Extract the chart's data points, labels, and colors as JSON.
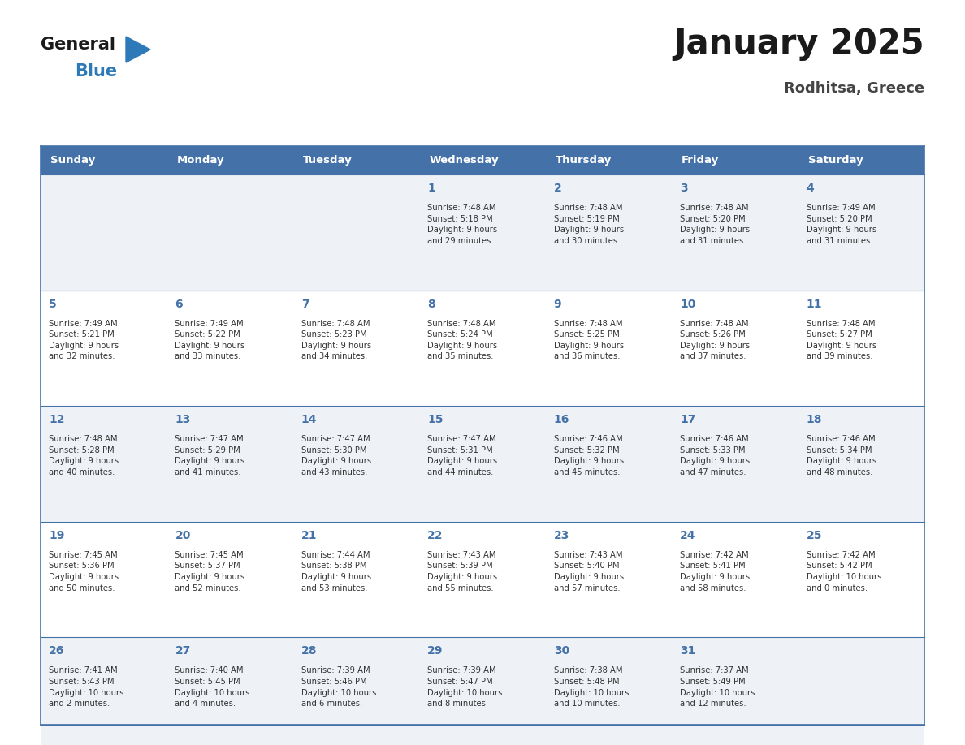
{
  "title": "January 2025",
  "subtitle": "Rodhitsa, Greece",
  "header_color": "#4472a8",
  "header_text_color": "#ffffff",
  "cell_bg_row_a": "#eef2f7",
  "cell_bg_row_b": "#ffffff",
  "border_color": "#4472a8",
  "separator_color": "#4472a8",
  "day_headers": [
    "Sunday",
    "Monday",
    "Tuesday",
    "Wednesday",
    "Thursday",
    "Friday",
    "Saturday"
  ],
  "title_color": "#1a1a1a",
  "subtitle_color": "#444444",
  "day_num_color": "#4472a8",
  "cell_text_color": "#333333",
  "logo_general_color": "#1a1a1a",
  "logo_blue_color": "#2e7ab8",
  "logo_triangle_color": "#2e7ab8",
  "weeks": [
    [
      {
        "day": "",
        "info": ""
      },
      {
        "day": "",
        "info": ""
      },
      {
        "day": "",
        "info": ""
      },
      {
        "day": "1",
        "info": "Sunrise: 7:48 AM\nSunset: 5:18 PM\nDaylight: 9 hours\nand 29 minutes."
      },
      {
        "day": "2",
        "info": "Sunrise: 7:48 AM\nSunset: 5:19 PM\nDaylight: 9 hours\nand 30 minutes."
      },
      {
        "day": "3",
        "info": "Sunrise: 7:48 AM\nSunset: 5:20 PM\nDaylight: 9 hours\nand 31 minutes."
      },
      {
        "day": "4",
        "info": "Sunrise: 7:49 AM\nSunset: 5:20 PM\nDaylight: 9 hours\nand 31 minutes."
      }
    ],
    [
      {
        "day": "5",
        "info": "Sunrise: 7:49 AM\nSunset: 5:21 PM\nDaylight: 9 hours\nand 32 minutes."
      },
      {
        "day": "6",
        "info": "Sunrise: 7:49 AM\nSunset: 5:22 PM\nDaylight: 9 hours\nand 33 minutes."
      },
      {
        "day": "7",
        "info": "Sunrise: 7:48 AM\nSunset: 5:23 PM\nDaylight: 9 hours\nand 34 minutes."
      },
      {
        "day": "8",
        "info": "Sunrise: 7:48 AM\nSunset: 5:24 PM\nDaylight: 9 hours\nand 35 minutes."
      },
      {
        "day": "9",
        "info": "Sunrise: 7:48 AM\nSunset: 5:25 PM\nDaylight: 9 hours\nand 36 minutes."
      },
      {
        "day": "10",
        "info": "Sunrise: 7:48 AM\nSunset: 5:26 PM\nDaylight: 9 hours\nand 37 minutes."
      },
      {
        "day": "11",
        "info": "Sunrise: 7:48 AM\nSunset: 5:27 PM\nDaylight: 9 hours\nand 39 minutes."
      }
    ],
    [
      {
        "day": "12",
        "info": "Sunrise: 7:48 AM\nSunset: 5:28 PM\nDaylight: 9 hours\nand 40 minutes."
      },
      {
        "day": "13",
        "info": "Sunrise: 7:47 AM\nSunset: 5:29 PM\nDaylight: 9 hours\nand 41 minutes."
      },
      {
        "day": "14",
        "info": "Sunrise: 7:47 AM\nSunset: 5:30 PM\nDaylight: 9 hours\nand 43 minutes."
      },
      {
        "day": "15",
        "info": "Sunrise: 7:47 AM\nSunset: 5:31 PM\nDaylight: 9 hours\nand 44 minutes."
      },
      {
        "day": "16",
        "info": "Sunrise: 7:46 AM\nSunset: 5:32 PM\nDaylight: 9 hours\nand 45 minutes."
      },
      {
        "day": "17",
        "info": "Sunrise: 7:46 AM\nSunset: 5:33 PM\nDaylight: 9 hours\nand 47 minutes."
      },
      {
        "day": "18",
        "info": "Sunrise: 7:46 AM\nSunset: 5:34 PM\nDaylight: 9 hours\nand 48 minutes."
      }
    ],
    [
      {
        "day": "19",
        "info": "Sunrise: 7:45 AM\nSunset: 5:36 PM\nDaylight: 9 hours\nand 50 minutes."
      },
      {
        "day": "20",
        "info": "Sunrise: 7:45 AM\nSunset: 5:37 PM\nDaylight: 9 hours\nand 52 minutes."
      },
      {
        "day": "21",
        "info": "Sunrise: 7:44 AM\nSunset: 5:38 PM\nDaylight: 9 hours\nand 53 minutes."
      },
      {
        "day": "22",
        "info": "Sunrise: 7:43 AM\nSunset: 5:39 PM\nDaylight: 9 hours\nand 55 minutes."
      },
      {
        "day": "23",
        "info": "Sunrise: 7:43 AM\nSunset: 5:40 PM\nDaylight: 9 hours\nand 57 minutes."
      },
      {
        "day": "24",
        "info": "Sunrise: 7:42 AM\nSunset: 5:41 PM\nDaylight: 9 hours\nand 58 minutes."
      },
      {
        "day": "25",
        "info": "Sunrise: 7:42 AM\nSunset: 5:42 PM\nDaylight: 10 hours\nand 0 minutes."
      }
    ],
    [
      {
        "day": "26",
        "info": "Sunrise: 7:41 AM\nSunset: 5:43 PM\nDaylight: 10 hours\nand 2 minutes."
      },
      {
        "day": "27",
        "info": "Sunrise: 7:40 AM\nSunset: 5:45 PM\nDaylight: 10 hours\nand 4 minutes."
      },
      {
        "day": "28",
        "info": "Sunrise: 7:39 AM\nSunset: 5:46 PM\nDaylight: 10 hours\nand 6 minutes."
      },
      {
        "day": "29",
        "info": "Sunrise: 7:39 AM\nSunset: 5:47 PM\nDaylight: 10 hours\nand 8 minutes."
      },
      {
        "day": "30",
        "info": "Sunrise: 7:38 AM\nSunset: 5:48 PM\nDaylight: 10 hours\nand 10 minutes."
      },
      {
        "day": "31",
        "info": "Sunrise: 7:37 AM\nSunset: 5:49 PM\nDaylight: 10 hours\nand 12 minutes."
      },
      {
        "day": "",
        "info": ""
      }
    ]
  ]
}
